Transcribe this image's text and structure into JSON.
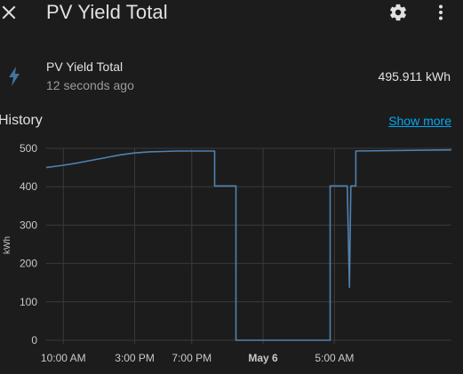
{
  "header": {
    "title": "PV Yield Total",
    "close_icon": "close-icon",
    "settings_icon": "gear-icon",
    "menu_icon": "dots-vertical-icon"
  },
  "entity": {
    "icon": "lightning-bolt-icon",
    "name": "PV Yield Total",
    "last_changed": "12 seconds ago",
    "state": "495.911 kWh"
  },
  "history": {
    "title": "History",
    "show_more": "Show more"
  },
  "colors": {
    "background": "#1c1c1c",
    "line": "#4f82b0",
    "grid": "#3a3a3a",
    "link": "#03a9f4",
    "icon": "#44739e"
  },
  "chart_data": {
    "type": "line",
    "xlabel": "",
    "ylabel": "kWh",
    "ylim": [
      0,
      500
    ],
    "yticks": [
      0,
      100,
      200,
      300,
      400,
      500
    ],
    "xticks": [
      {
        "label": "10:00 AM",
        "t": 10,
        "bold": false
      },
      {
        "label": "3:00 PM",
        "t": 15,
        "bold": false
      },
      {
        "label": "7:00 PM",
        "t": 19,
        "bold": false
      },
      {
        "label": "May 6",
        "t": 24,
        "bold": true
      },
      {
        "label": "5:00 AM",
        "t": 29,
        "bold": false
      }
    ],
    "xlim": [
      8.8,
      37.2
    ],
    "series": [
      {
        "name": "",
        "x": [
          8.8,
          10,
          11,
          12,
          13,
          14,
          15,
          16,
          17,
          18,
          19,
          20.6,
          20.6,
          22.1,
          22.1,
          24,
          26,
          28.7,
          28.7,
          29.9,
          29.9,
          30.05,
          30.15,
          30.25,
          30.3,
          30.5,
          30.5,
          37.2
        ],
        "y": [
          450,
          456,
          462,
          469,
          476,
          483,
          488,
          491,
          492,
          493,
          493,
          493,
          402,
          402,
          0,
          0,
          0,
          0,
          402,
          402,
          396,
          138,
          402,
          402,
          402,
          402,
          493,
          496
        ]
      }
    ]
  }
}
